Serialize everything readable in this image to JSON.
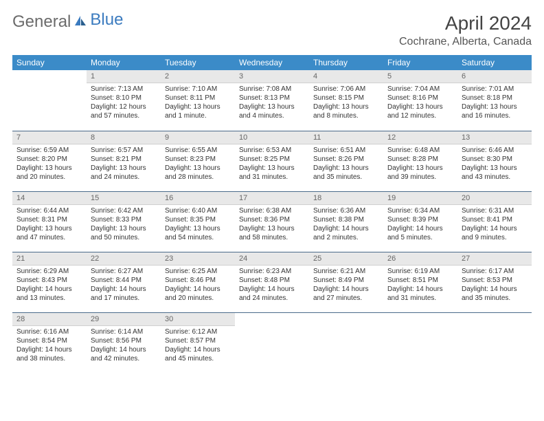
{
  "logo": {
    "part1": "General",
    "part2": "Blue"
  },
  "title": "April 2024",
  "location": "Cochrane, Alberta, Canada",
  "colors": {
    "header_bg": "#3b8bc8",
    "header_text": "#ffffff",
    "daynum_bg": "#e8e8e8",
    "row_rule": "#4a6a8a",
    "logo_gray": "#6b6b6b",
    "logo_blue": "#3b7bbf"
  },
  "weekdays": [
    "Sunday",
    "Monday",
    "Tuesday",
    "Wednesday",
    "Thursday",
    "Friday",
    "Saturday"
  ],
  "weeks": [
    [
      null,
      {
        "n": "1",
        "sr": "Sunrise: 7:13 AM",
        "ss": "Sunset: 8:10 PM",
        "dl": "Daylight: 12 hours and 57 minutes."
      },
      {
        "n": "2",
        "sr": "Sunrise: 7:10 AM",
        "ss": "Sunset: 8:11 PM",
        "dl": "Daylight: 13 hours and 1 minute."
      },
      {
        "n": "3",
        "sr": "Sunrise: 7:08 AM",
        "ss": "Sunset: 8:13 PM",
        "dl": "Daylight: 13 hours and 4 minutes."
      },
      {
        "n": "4",
        "sr": "Sunrise: 7:06 AM",
        "ss": "Sunset: 8:15 PM",
        "dl": "Daylight: 13 hours and 8 minutes."
      },
      {
        "n": "5",
        "sr": "Sunrise: 7:04 AM",
        "ss": "Sunset: 8:16 PM",
        "dl": "Daylight: 13 hours and 12 minutes."
      },
      {
        "n": "6",
        "sr": "Sunrise: 7:01 AM",
        "ss": "Sunset: 8:18 PM",
        "dl": "Daylight: 13 hours and 16 minutes."
      }
    ],
    [
      {
        "n": "7",
        "sr": "Sunrise: 6:59 AM",
        "ss": "Sunset: 8:20 PM",
        "dl": "Daylight: 13 hours and 20 minutes."
      },
      {
        "n": "8",
        "sr": "Sunrise: 6:57 AM",
        "ss": "Sunset: 8:21 PM",
        "dl": "Daylight: 13 hours and 24 minutes."
      },
      {
        "n": "9",
        "sr": "Sunrise: 6:55 AM",
        "ss": "Sunset: 8:23 PM",
        "dl": "Daylight: 13 hours and 28 minutes."
      },
      {
        "n": "10",
        "sr": "Sunrise: 6:53 AM",
        "ss": "Sunset: 8:25 PM",
        "dl": "Daylight: 13 hours and 31 minutes."
      },
      {
        "n": "11",
        "sr": "Sunrise: 6:51 AM",
        "ss": "Sunset: 8:26 PM",
        "dl": "Daylight: 13 hours and 35 minutes."
      },
      {
        "n": "12",
        "sr": "Sunrise: 6:48 AM",
        "ss": "Sunset: 8:28 PM",
        "dl": "Daylight: 13 hours and 39 minutes."
      },
      {
        "n": "13",
        "sr": "Sunrise: 6:46 AM",
        "ss": "Sunset: 8:30 PM",
        "dl": "Daylight: 13 hours and 43 minutes."
      }
    ],
    [
      {
        "n": "14",
        "sr": "Sunrise: 6:44 AM",
        "ss": "Sunset: 8:31 PM",
        "dl": "Daylight: 13 hours and 47 minutes."
      },
      {
        "n": "15",
        "sr": "Sunrise: 6:42 AM",
        "ss": "Sunset: 8:33 PM",
        "dl": "Daylight: 13 hours and 50 minutes."
      },
      {
        "n": "16",
        "sr": "Sunrise: 6:40 AM",
        "ss": "Sunset: 8:35 PM",
        "dl": "Daylight: 13 hours and 54 minutes."
      },
      {
        "n": "17",
        "sr": "Sunrise: 6:38 AM",
        "ss": "Sunset: 8:36 PM",
        "dl": "Daylight: 13 hours and 58 minutes."
      },
      {
        "n": "18",
        "sr": "Sunrise: 6:36 AM",
        "ss": "Sunset: 8:38 PM",
        "dl": "Daylight: 14 hours and 2 minutes."
      },
      {
        "n": "19",
        "sr": "Sunrise: 6:34 AM",
        "ss": "Sunset: 8:39 PM",
        "dl": "Daylight: 14 hours and 5 minutes."
      },
      {
        "n": "20",
        "sr": "Sunrise: 6:31 AM",
        "ss": "Sunset: 8:41 PM",
        "dl": "Daylight: 14 hours and 9 minutes."
      }
    ],
    [
      {
        "n": "21",
        "sr": "Sunrise: 6:29 AM",
        "ss": "Sunset: 8:43 PM",
        "dl": "Daylight: 14 hours and 13 minutes."
      },
      {
        "n": "22",
        "sr": "Sunrise: 6:27 AM",
        "ss": "Sunset: 8:44 PM",
        "dl": "Daylight: 14 hours and 17 minutes."
      },
      {
        "n": "23",
        "sr": "Sunrise: 6:25 AM",
        "ss": "Sunset: 8:46 PM",
        "dl": "Daylight: 14 hours and 20 minutes."
      },
      {
        "n": "24",
        "sr": "Sunrise: 6:23 AM",
        "ss": "Sunset: 8:48 PM",
        "dl": "Daylight: 14 hours and 24 minutes."
      },
      {
        "n": "25",
        "sr": "Sunrise: 6:21 AM",
        "ss": "Sunset: 8:49 PM",
        "dl": "Daylight: 14 hours and 27 minutes."
      },
      {
        "n": "26",
        "sr": "Sunrise: 6:19 AM",
        "ss": "Sunset: 8:51 PM",
        "dl": "Daylight: 14 hours and 31 minutes."
      },
      {
        "n": "27",
        "sr": "Sunrise: 6:17 AM",
        "ss": "Sunset: 8:53 PM",
        "dl": "Daylight: 14 hours and 35 minutes."
      }
    ],
    [
      {
        "n": "28",
        "sr": "Sunrise: 6:16 AM",
        "ss": "Sunset: 8:54 PM",
        "dl": "Daylight: 14 hours and 38 minutes."
      },
      {
        "n": "29",
        "sr": "Sunrise: 6:14 AM",
        "ss": "Sunset: 8:56 PM",
        "dl": "Daylight: 14 hours and 42 minutes."
      },
      {
        "n": "30",
        "sr": "Sunrise: 6:12 AM",
        "ss": "Sunset: 8:57 PM",
        "dl": "Daylight: 14 hours and 45 minutes."
      },
      null,
      null,
      null,
      null
    ]
  ]
}
